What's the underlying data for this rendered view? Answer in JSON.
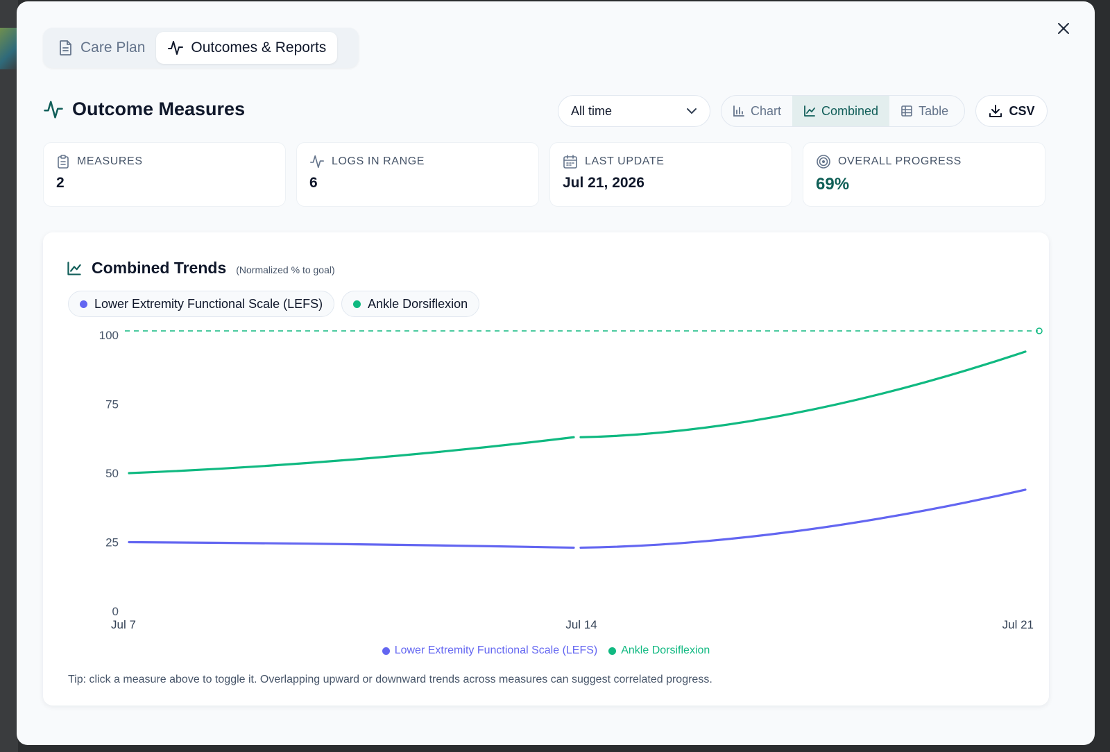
{
  "tabs": [
    {
      "label": "Care Plan",
      "icon": "document-icon",
      "active": false
    },
    {
      "label": "Outcomes & Reports",
      "icon": "activity-icon",
      "active": true
    }
  ],
  "header": {
    "title": "Outcome Measures",
    "range_select": {
      "value": "All time"
    },
    "view_toggle": [
      {
        "label": "Chart",
        "active": false
      },
      {
        "label": "Combined",
        "active": true
      },
      {
        "label": "Table",
        "active": false
      }
    ],
    "csv_label": "CSV"
  },
  "stats": [
    {
      "label": "MEASURES",
      "value": "2",
      "icon": "clipboard-icon"
    },
    {
      "label": "LOGS IN RANGE",
      "value": "6",
      "icon": "activity-icon"
    },
    {
      "label": "LAST UPDATE",
      "value": "Jul 21, 2026",
      "icon": "calendar-icon"
    },
    {
      "label": "OVERALL PROGRESS",
      "value": "69%",
      "icon": "target-icon"
    }
  ],
  "chart_card": {
    "title": "Combined Trends",
    "subtitle": "(Normalized % to goal)",
    "chips": [
      {
        "label": "Lower Extremity Functional Scale (LEFS)",
        "color": "#6366f1"
      },
      {
        "label": "Ankle Dorsiflexion",
        "color": "#10b981"
      }
    ],
    "tip": "Tip: click a measure above to toggle it. Overlapping upward or downward trends across measures can suggest correlated progress."
  },
  "chart_data": {
    "type": "line",
    "x": [
      "Jul 7",
      "Jul 14",
      "Jul 21"
    ],
    "ylim": [
      0,
      100
    ],
    "yticks": [
      0,
      25,
      50,
      75,
      100
    ],
    "goal_line": 100,
    "grid": false,
    "legend": "bottom-center",
    "series": [
      {
        "name": "Lower Extremity Functional Scale (LEFS)",
        "color": "#6366f1",
        "values": [
          25,
          23,
          44
        ]
      },
      {
        "name": "Ankle Dorsiflexion",
        "color": "#10b981",
        "values": [
          50,
          63,
          94
        ]
      }
    ]
  },
  "colors": {
    "accent": "#115e59",
    "lefs": "#6366f1",
    "ankle": "#10b981"
  }
}
